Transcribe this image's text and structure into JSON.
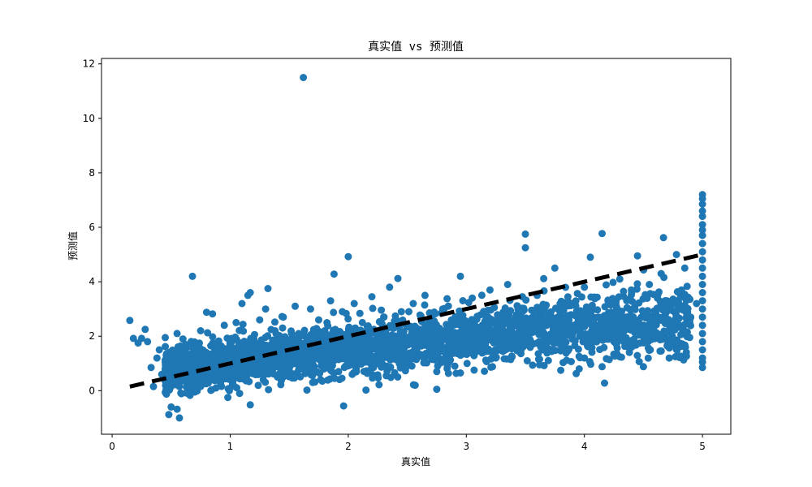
{
  "chart_data": {
    "type": "scatter",
    "title": "真实值 vs 预测值",
    "xlabel": "真实值",
    "ylabel": "预测值",
    "xlim": [
      -0.09,
      5.24
    ],
    "ylim": [
      -1.6,
      12.2
    ],
    "x_ticks": [
      0,
      1,
      2,
      3,
      4,
      5
    ],
    "y_ticks": [
      0,
      2,
      4,
      6,
      8,
      10,
      12
    ],
    "x_tick_labels": [
      "0",
      "1",
      "2",
      "3",
      "4",
      "5"
    ],
    "y_tick_labels": [
      "0",
      "2",
      "4",
      "6",
      "8",
      "10",
      "12"
    ],
    "grid": false,
    "legend": "none",
    "reference_line": {
      "x": [
        0.15,
        5.0
      ],
      "y": [
        0.15,
        5.0
      ],
      "style": "dashed",
      "color": "#000000"
    },
    "series": [
      {
        "color": "#1f77b4",
        "points": [
          [
            0.15,
            2.58
          ],
          [
            0.18,
            1.92
          ],
          [
            0.22,
            1.75
          ],
          [
            0.25,
            1.92
          ],
          [
            0.28,
            2.25
          ],
          [
            0.3,
            1.8
          ],
          [
            0.33,
            0.85
          ],
          [
            0.35,
            0.15
          ],
          [
            0.38,
            1.2
          ],
          [
            0.4,
            1.5
          ],
          [
            0.42,
            0.6
          ],
          [
            0.45,
            1.95
          ],
          [
            0.47,
            0.3
          ],
          [
            0.48,
            -0.88
          ],
          [
            0.5,
            -0.6
          ],
          [
            0.52,
            1.1
          ],
          [
            0.55,
            2.1
          ],
          [
            0.55,
            -0.68
          ],
          [
            0.57,
            -1.0
          ],
          [
            0.58,
            0.4
          ],
          [
            0.6,
            1.9
          ],
          [
            0.62,
            0.9
          ],
          [
            0.65,
            0.2
          ],
          [
            0.68,
            4.2
          ],
          [
            0.7,
            -0.05
          ],
          [
            0.72,
            1.4
          ],
          [
            0.75,
            2.2
          ],
          [
            0.78,
            0.5
          ],
          [
            0.8,
            2.88
          ],
          [
            0.82,
            1.0
          ],
          [
            0.85,
            2.82
          ],
          [
            0.88,
            0.1
          ],
          [
            0.9,
            1.8
          ],
          [
            0.92,
            0.6
          ],
          [
            0.95,
            2.4
          ],
          [
            0.98,
            -0.25
          ],
          [
            1.0,
            1.3
          ],
          [
            1.02,
            0.2
          ],
          [
            1.05,
            2.5
          ],
          [
            1.08,
            -0.1
          ],
          [
            1.1,
            3.2
          ],
          [
            1.12,
            0.9
          ],
          [
            1.15,
            3.5
          ],
          [
            1.17,
            3.6
          ],
          [
            1.17,
            -0.52
          ],
          [
            1.2,
            1.9
          ],
          [
            1.25,
            2.6
          ],
          [
            1.28,
            0.4
          ],
          [
            1.3,
            3.0
          ],
          [
            1.32,
            3.75
          ],
          [
            1.35,
            1.1
          ],
          [
            1.38,
            2.2
          ],
          [
            1.4,
            0.5
          ],
          [
            1.45,
            2.7
          ],
          [
            1.48,
            1.4
          ],
          [
            1.5,
            0.8
          ],
          [
            1.55,
            3.1
          ],
          [
            1.58,
            2.0
          ],
          [
            1.62,
            11.5
          ],
          [
            1.65,
            0.02
          ],
          [
            1.68,
            3.0
          ],
          [
            1.7,
            1.2
          ],
          [
            1.75,
            2.6
          ],
          [
            1.78,
            0.35
          ],
          [
            1.8,
            2.2
          ],
          [
            1.85,
            3.3
          ],
          [
            1.88,
            4.28
          ],
          [
            1.9,
            1.4
          ],
          [
            1.95,
            2.9
          ],
          [
            2.0,
            4.92
          ],
          [
            2.02,
            1.8
          ],
          [
            2.05,
            3.2
          ],
          [
            2.1,
            1.1
          ],
          [
            2.12,
            2.5
          ],
          [
            2.15,
            0.02
          ],
          [
            2.2,
            3.45
          ],
          [
            2.25,
            2.0
          ],
          [
            2.25,
            0.58
          ],
          [
            2.28,
            0.9
          ],
          [
            2.3,
            2.7
          ],
          [
            2.35,
            3.8
          ],
          [
            2.4,
            1.6
          ],
          [
            2.42,
            4.12
          ],
          [
            2.45,
            2.9
          ],
          [
            2.48,
            1.05
          ],
          [
            2.5,
            2.4
          ],
          [
            2.55,
            3.2
          ],
          [
            2.6,
            1.8
          ],
          [
            2.65,
            3.5
          ],
          [
            2.7,
            2.1
          ],
          [
            2.75,
            0.7
          ],
          [
            2.75,
            0.05
          ],
          [
            2.8,
            3.0
          ],
          [
            2.85,
            1.9
          ],
          [
            2.9,
            2.6
          ],
          [
            2.95,
            0.65
          ],
          [
            2.95,
            4.2
          ],
          [
            3.0,
            2.2
          ],
          [
            3.05,
            3.4
          ],
          [
            3.1,
            1.6
          ],
          [
            3.15,
            2.8
          ],
          [
            3.2,
            3.7
          ],
          [
            3.25,
            1.2
          ],
          [
            3.3,
            2.5
          ],
          [
            3.35,
            3.9
          ],
          [
            3.4,
            1.8
          ],
          [
            3.45,
            2.9
          ],
          [
            3.5,
            5.75
          ],
          [
            3.5,
            5.25
          ],
          [
            3.55,
            2.2
          ],
          [
            3.6,
            3.5
          ],
          [
            3.62,
            0.95
          ],
          [
            3.65,
            1.5
          ],
          [
            3.7,
            2.8
          ],
          [
            3.75,
            4.5
          ],
          [
            3.8,
            0.75
          ],
          [
            3.85,
            3.2
          ],
          [
            3.9,
            1.9
          ],
          [
            3.95,
            2.6
          ],
          [
            4.0,
            3.8
          ],
          [
            4.0,
            1.2
          ],
          [
            4.05,
            4.9
          ],
          [
            4.1,
            2.4
          ],
          [
            4.15,
            5.77
          ],
          [
            4.15,
            0.88
          ],
          [
            4.2,
            3.3
          ],
          [
            4.25,
            1.8
          ],
          [
            4.3,
            4.1
          ],
          [
            4.35,
            2.7
          ],
          [
            4.4,
            3.6
          ],
          [
            4.45,
            4.95
          ],
          [
            4.5,
            2.0
          ],
          [
            4.5,
            0.88
          ],
          [
            4.55,
            3.9
          ],
          [
            4.6,
            2.9
          ],
          [
            4.65,
            4.3
          ],
          [
            4.67,
            5.62
          ],
          [
            4.7,
            3.3
          ],
          [
            4.75,
            2.4
          ],
          [
            4.78,
            5.0
          ],
          [
            4.8,
            3.6
          ],
          [
            4.85,
            4.5
          ],
          [
            4.9,
            2.7
          ],
          [
            4.95,
            3.2
          ],
          [
            5.0,
            7.2
          ],
          [
            5.0,
            7.05
          ],
          [
            5.0,
            6.85
          ],
          [
            5.0,
            6.6
          ],
          [
            5.0,
            6.4
          ],
          [
            5.0,
            6.1
          ],
          [
            5.0,
            5.9
          ],
          [
            5.0,
            5.7
          ],
          [
            5.0,
            5.4
          ],
          [
            5.0,
            5.1
          ],
          [
            5.0,
            4.8
          ],
          [
            5.0,
            4.5
          ],
          [
            5.0,
            4.2
          ],
          [
            5.0,
            3.9
          ],
          [
            5.0,
            3.6
          ],
          [
            5.0,
            3.3
          ],
          [
            5.0,
            3.0
          ],
          [
            5.0,
            2.7
          ],
          [
            5.0,
            2.4
          ],
          [
            5.0,
            2.1
          ],
          [
            5.0,
            1.8
          ],
          [
            5.0,
            1.5
          ],
          [
            5.0,
            1.2
          ],
          [
            5.0,
            1.05
          ],
          [
            5.0,
            0.85
          ]
        ]
      }
    ]
  }
}
